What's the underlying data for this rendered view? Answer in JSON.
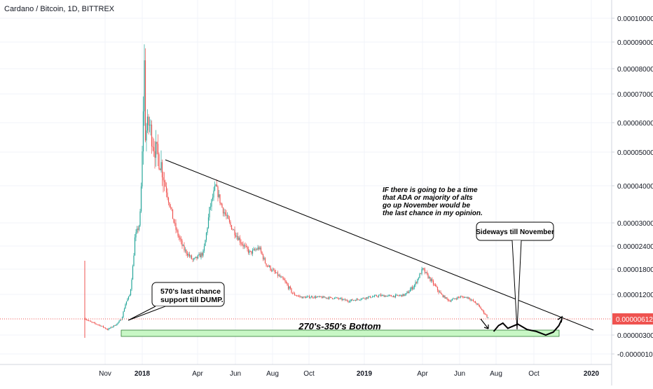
{
  "chart_data": {
    "type": "candlestick",
    "title": "Cardano / Bitcoin, 1D, BITTREX",
    "colors": {
      "up": "#26a69a",
      "down": "#ef5350",
      "grid": "#f0f3fa",
      "axis_text": "#131722",
      "current_price": "#ef5350",
      "support_zone": "#c8f7c5",
      "trendline": "#000000"
    },
    "x_axis": {
      "ticks": [
        "Nov",
        "2018",
        "Apr",
        "Jun",
        "Aug",
        "Oct",
        "2019",
        "Apr",
        "Jun",
        "Aug",
        "Oct",
        "2020"
      ],
      "bold_ticks": [
        "2018",
        "2019",
        "2020"
      ]
    },
    "y_axis": {
      "position": "right",
      "scale": "log",
      "tick_labels": [
        "0.00010000",
        "0.00009000",
        "0.00008000",
        "0.00007000",
        "0.00006000",
        "0.00005000",
        "0.00004000",
        "0.00003000",
        "0.00002400",
        "0.00001800",
        "0.00001200",
        "0.00000300",
        "-0.00000100"
      ],
      "current_price": "0.00000612"
    },
    "price_path": [
      {
        "x": "2017-10-01",
        "y": 6e-06
      },
      {
        "x": "2017-10-10",
        "y": 5.2e-06
      },
      {
        "x": "2017-10-25",
        "y": 4.5e-06
      },
      {
        "x": "2017-11-05",
        "y": 3.8e-06
      },
      {
        "x": "2017-11-20",
        "y": 4.8e-06
      },
      {
        "x": "2017-11-28",
        "y": 6e-06
      },
      {
        "x": "2017-12-05",
        "y": 9.5e-06
      },
      {
        "x": "2017-12-12",
        "y": 1.2e-05
      },
      {
        "x": "2017-12-20",
        "y": 2.6e-05
      },
      {
        "x": "2017-12-28",
        "y": 3e-05
      },
      {
        "x": "2018-01-02",
        "y": 5.5e-05
      },
      {
        "x": "2018-01-04",
        "y": 9e-05
      },
      {
        "x": "2018-01-06",
        "y": 5.6e-05
      },
      {
        "x": "2018-01-12",
        "y": 6e-05
      },
      {
        "x": "2018-01-20",
        "y": 5.2e-05
      },
      {
        "x": "2018-02-01",
        "y": 4.6e-05
      },
      {
        "x": "2018-02-10",
        "y": 3.8e-05
      },
      {
        "x": "2018-02-25",
        "y": 2.8e-05
      },
      {
        "x": "2018-03-10",
        "y": 2.3e-05
      },
      {
        "x": "2018-03-25",
        "y": 2e-05
      },
      {
        "x": "2018-04-10",
        "y": 2.2e-05
      },
      {
        "x": "2018-04-20",
        "y": 3.3e-05
      },
      {
        "x": "2018-04-30",
        "y": 4e-05
      },
      {
        "x": "2018-05-10",
        "y": 3.4e-05
      },
      {
        "x": "2018-05-25",
        "y": 2.9e-05
      },
      {
        "x": "2018-06-10",
        "y": 2.5e-05
      },
      {
        "x": "2018-06-25",
        "y": 2.2e-05
      },
      {
        "x": "2018-07-10",
        "y": 2.35e-05
      },
      {
        "x": "2018-07-20",
        "y": 1.95e-05
      },
      {
        "x": "2018-08-05",
        "y": 1.7e-05
      },
      {
        "x": "2018-08-20",
        "y": 1.5e-05
      },
      {
        "x": "2018-09-05",
        "y": 1.2e-05
      },
      {
        "x": "2018-09-20",
        "y": 1.1e-05
      },
      {
        "x": "2018-10-05",
        "y": 1.12e-05
      },
      {
        "x": "2018-10-25",
        "y": 1.1e-05
      },
      {
        "x": "2018-11-15",
        "y": 1.08e-05
      },
      {
        "x": "2018-12-05",
        "y": 1e-05
      },
      {
        "x": "2018-12-20",
        "y": 1.04e-05
      },
      {
        "x": "2019-01-05",
        "y": 1.1e-05
      },
      {
        "x": "2019-01-25",
        "y": 1.16e-05
      },
      {
        "x": "2019-02-15",
        "y": 1.14e-05
      },
      {
        "x": "2019-03-05",
        "y": 1.18e-05
      },
      {
        "x": "2019-03-20",
        "y": 1.4e-05
      },
      {
        "x": "2019-04-01",
        "y": 1.8e-05
      },
      {
        "x": "2019-04-15",
        "y": 1.5e-05
      },
      {
        "x": "2019-05-01",
        "y": 1.2e-05
      },
      {
        "x": "2019-05-15",
        "y": 1e-05
      },
      {
        "x": "2019-06-01",
        "y": 1.12e-05
      },
      {
        "x": "2019-06-15",
        "y": 1.1e-05
      },
      {
        "x": "2019-07-01",
        "y": 9e-06
      },
      {
        "x": "2019-07-20",
        "y": 6e-06
      }
    ],
    "projection_path": [
      {
        "x": "2019-07-28",
        "y": 3.5e-06
      },
      {
        "x": "2019-08-05",
        "y": 4.5e-06
      },
      {
        "x": "2019-08-12",
        "y": 5e-06
      },
      {
        "x": "2019-08-20",
        "y": 4e-06
      },
      {
        "x": "2019-09-05",
        "y": 4.8e-06
      },
      {
        "x": "2019-09-20",
        "y": 3.8e-06
      },
      {
        "x": "2019-10-05",
        "y": 3.5e-06
      },
      {
        "x": "2019-10-20",
        "y": 3e-06
      },
      {
        "x": "2019-11-01",
        "y": 3.4e-06
      },
      {
        "x": "2019-11-10",
        "y": 4.5e-06
      },
      {
        "x": "2019-11-15",
        "y": 6e-06
      }
    ],
    "annotations": {
      "callout_570": "570's last chance\nsupport till DUMP.",
      "zone_label": "270's-350's Bottom",
      "thesis_note": "IF there is going to be a time\nthat ADA or majority of alts\ngo up November would be\nthe last chance in my opinion.",
      "sideways_callout": "Sideways till November"
    }
  }
}
